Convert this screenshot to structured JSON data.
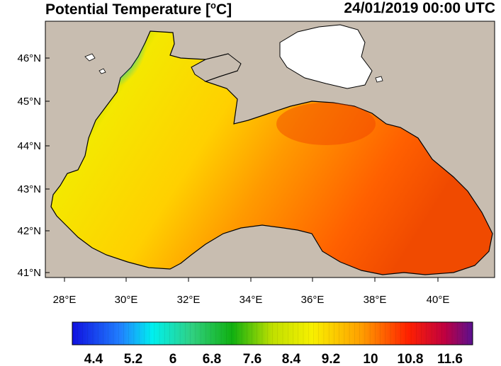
{
  "title_main": "Potential Temperature [",
  "title_sup": "o",
  "title_unit": "C]",
  "timestamp": "24/01/2019 00:00 UTC",
  "lon_ticks": [
    "28°E",
    "30°E",
    "32°E",
    "34°E",
    "36°E",
    "38°E",
    "40°E"
  ],
  "lat_ticks": [
    "46°N",
    "45°N",
    "44°N",
    "43°N",
    "42°N",
    "41°N"
  ],
  "colorbar_labels": [
    "4.4",
    "5.2",
    "6",
    "6.8",
    "7.6",
    "8.4",
    "9.2",
    "10",
    "10.8",
    "11.6"
  ],
  "colors": {
    "land": "#c8bdb0",
    "sea_of_azov": "#ffffff",
    "cold": "#1030d8",
    "warm": "#f04000"
  }
}
